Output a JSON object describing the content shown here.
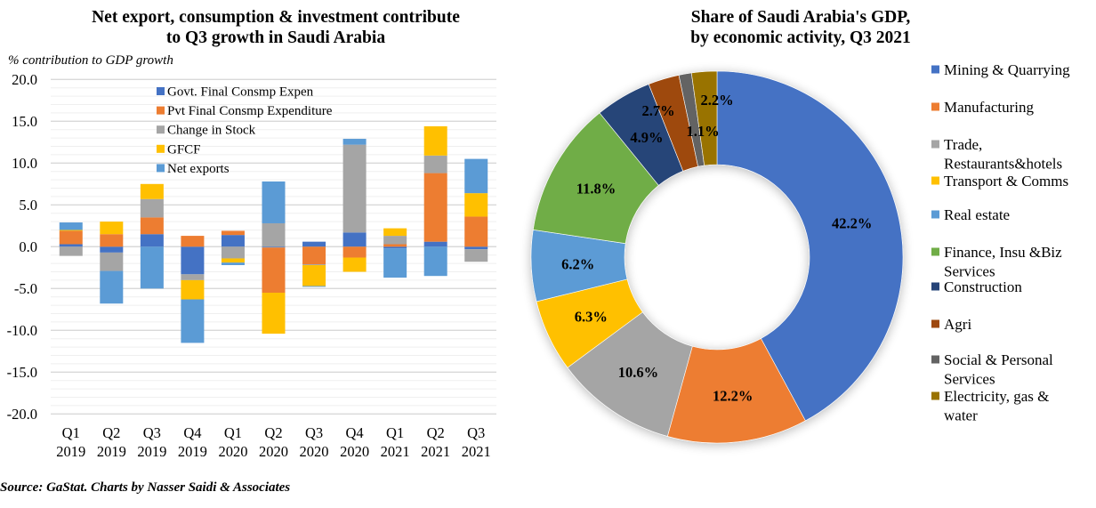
{
  "chart_data": [
    {
      "type": "bar",
      "stacked": true,
      "title": "Net export, consumption & investment contribute to Q3 growth in Saudi Arabia",
      "ylabel": "% contribution to GDP growth",
      "xlabel": "",
      "ylim": [
        -20,
        20
      ],
      "yticks": [
        "20.0",
        "15.0",
        "10.0",
        "5.0",
        "0.0",
        "-5.0",
        "-10.0",
        "-15.0",
        "-20.0"
      ],
      "ytick_values": [
        20,
        15,
        10,
        5,
        0,
        -5,
        -10,
        -15,
        -20
      ],
      "grid": true,
      "legend_position": "top-center",
      "categories": [
        [
          "Q1",
          "2019"
        ],
        [
          "Q2",
          "2019"
        ],
        [
          "Q3",
          "2019"
        ],
        [
          "Q4",
          "2019"
        ],
        [
          "Q1",
          "2020"
        ],
        [
          "Q2",
          "2020"
        ],
        [
          "Q3",
          "2020"
        ],
        [
          "Q4",
          "2020"
        ],
        [
          "Q1",
          "2021"
        ],
        [
          "Q2",
          "2021"
        ],
        [
          "Q3",
          "2021"
        ]
      ],
      "series": [
        {
          "name": "Govt. Final Consmp Expen",
          "color": "#4472C4",
          "values": [
            0.3,
            -0.7,
            1.5,
            -3.3,
            1.4,
            -0.1,
            0.6,
            1.7,
            -0.2,
            0.6,
            -0.3
          ]
        },
        {
          "name": "Pvt Final Consmp Expenditure",
          "color": "#ED7D31",
          "values": [
            1.6,
            1.5,
            2.0,
            1.3,
            0.5,
            -5.4,
            -2.1,
            -1.3,
            0.3,
            8.2,
            3.6
          ]
        },
        {
          "name": "Change in Stock",
          "color": "#A5A5A5",
          "values": [
            -1.1,
            -2.2,
            2.2,
            -0.7,
            -1.4,
            2.8,
            -0.1,
            10.5,
            1.0,
            2.1,
            -1.5
          ]
        },
        {
          "name": "GFCF",
          "color": "#FFC000",
          "values": [
            0.1,
            1.5,
            1.8,
            -2.3,
            -0.5,
            -4.9,
            -2.5,
            -1.7,
            0.9,
            3.5,
            2.8
          ]
        },
        {
          "name": "Net exports",
          "color": "#5B9BD5",
          "values": [
            0.9,
            -3.9,
            -5.0,
            -5.2,
            -0.3,
            5.0,
            -0.1,
            0.7,
            -3.5,
            -3.5,
            4.1
          ]
        }
      ]
    },
    {
      "type": "pie",
      "donut": true,
      "title": "Share of Saudi Arabia's GDP, by economic activity, Q3 2021",
      "legend_position": "right",
      "categories": [
        "Mining & Quarrying",
        "Manufacturing",
        "Trade, Restaurants&hotels",
        "Transport & Comms",
        "Real estate",
        "Finance, Insu &Biz Services",
        "Construction",
        "Agri",
        "Social & Personal Services",
        "Electricity, gas & water"
      ],
      "legend_lines": [
        [
          "Mining & Quarrying"
        ],
        [
          "Manufacturing"
        ],
        [
          "Trade,",
          "Restaurants&hotels"
        ],
        [
          "Transport & Comms"
        ],
        [
          "Real estate"
        ],
        [
          "Finance, Insu &Biz",
          "Services"
        ],
        [
          "Construction"
        ],
        [
          "Agri"
        ],
        [
          "Social & Personal",
          "Services"
        ],
        [
          "Electricity, gas &",
          "water"
        ]
      ],
      "values": [
        42.2,
        12.2,
        10.6,
        6.3,
        6.2,
        11.8,
        4.9,
        2.7,
        1.1,
        2.2
      ],
      "labels": [
        "42.2%",
        "12.2%",
        "10.6%",
        "6.3%",
        "6.2%",
        "11.8%",
        "4.9%",
        "2.7%",
        "1.1%",
        "2.2%"
      ],
      "colors": [
        "#4472C4",
        "#ED7D31",
        "#A5A5A5",
        "#FFC000",
        "#5B9BD5",
        "#70AD47",
        "#264478",
        "#9E480E",
        "#636363",
        "#997300"
      ]
    }
  ],
  "titles": {
    "bar_line1": "Net export, consumption & investment contribute",
    "bar_line2": "to Q3 growth in Saudi Arabia",
    "pie_line1": "Share of Saudi Arabia's GDP,",
    "pie_line2": "by economic activity, Q3 2021"
  },
  "source": "Source: GaStat. Charts by Nasser Saidi & Associates"
}
